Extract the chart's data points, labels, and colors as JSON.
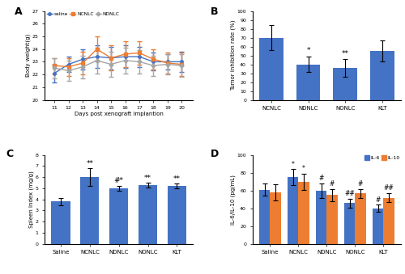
{
  "A": {
    "days": [
      11,
      12,
      13,
      14,
      15,
      16,
      17,
      18,
      19,
      20
    ],
    "saline_mean": [
      22.1,
      22.8,
      23.2,
      23.4,
      23.3,
      23.4,
      23.4,
      23.0,
      23.0,
      23.0
    ],
    "saline_err": [
      0.7,
      0.6,
      0.8,
      0.9,
      0.9,
      0.9,
      0.8,
      0.7,
      0.6,
      0.8
    ],
    "ncnlc_mean": [
      22.7,
      22.6,
      22.9,
      24.0,
      23.3,
      23.6,
      23.7,
      23.2,
      22.9,
      22.8
    ],
    "ncnlc_err": [
      0.6,
      0.7,
      0.9,
      1.0,
      1.0,
      1.0,
      0.9,
      0.8,
      0.8,
      0.9
    ],
    "ndnlc_mean": [
      22.5,
      22.3,
      22.6,
      23.1,
      22.8,
      23.1,
      23.0,
      22.7,
      22.8,
      22.7
    ],
    "ndnlc_err": [
      0.8,
      0.8,
      0.9,
      1.0,
      1.0,
      1.0,
      0.9,
      0.8,
      0.8,
      0.9
    ],
    "saline_color": "#4472C4",
    "ncnlc_color": "#ED7D31",
    "ndnlc_color": "#A5A5A5",
    "ylabel": "Body weight(g)",
    "xlabel": "Days post xenograft implantion",
    "ylim": [
      20,
      27
    ],
    "yticks": [
      20,
      21,
      22,
      23,
      24,
      25,
      26,
      27
    ],
    "label": "A"
  },
  "B": {
    "categories": [
      "NCNLC",
      "NDNLC",
      "NONLC",
      "KLT"
    ],
    "values": [
      70,
      40,
      36,
      55
    ],
    "errors": [
      14,
      9,
      10,
      12
    ],
    "bar_color": "#4472C4",
    "ylabel": "Tumor inhibition rate (%)",
    "ylim": [
      0,
      100
    ],
    "yticks": [
      0,
      10,
      20,
      30,
      40,
      50,
      60,
      70,
      80,
      90,
      100
    ],
    "annots": [
      "",
      "*",
      "**",
      ""
    ],
    "label": "B"
  },
  "C": {
    "categories": [
      "Saline",
      "NCNLC",
      "NDNLC",
      "NONLC",
      "KLT"
    ],
    "values": [
      3.8,
      6.0,
      5.0,
      5.3,
      5.2
    ],
    "errors": [
      0.35,
      0.8,
      0.25,
      0.22,
      0.22
    ],
    "bar_color": "#4472C4",
    "ylabel": "Spleen Index (mg/g)",
    "ylim": [
      0,
      8
    ],
    "yticks": [
      0,
      1,
      2,
      3,
      4,
      5,
      6,
      7,
      8
    ],
    "annots": [
      "",
      "**",
      "#*",
      "**",
      "**"
    ],
    "label": "C"
  },
  "D": {
    "categories": [
      "Saline",
      "NCNLC",
      "NDNLC",
      "NONLC",
      "KLT"
    ],
    "il6_values": [
      61,
      75,
      60,
      46,
      40
    ],
    "il6_errors": [
      7,
      9,
      8,
      5,
      4
    ],
    "il10_values": [
      58,
      70,
      55,
      57,
      52
    ],
    "il10_errors": [
      9,
      9,
      7,
      5,
      5
    ],
    "il6_color": "#4472C4",
    "il10_color": "#ED7D31",
    "ylabel": "IL-6/IL-10 (pg/mL)",
    "ylim": [
      0,
      100
    ],
    "yticks": [
      0,
      20,
      40,
      60,
      80,
      100
    ],
    "il6_annots": [
      "",
      "*",
      "#",
      "##",
      "#"
    ],
    "il10_annots": [
      "",
      "*",
      "#",
      "#",
      "##"
    ],
    "label": "D"
  }
}
